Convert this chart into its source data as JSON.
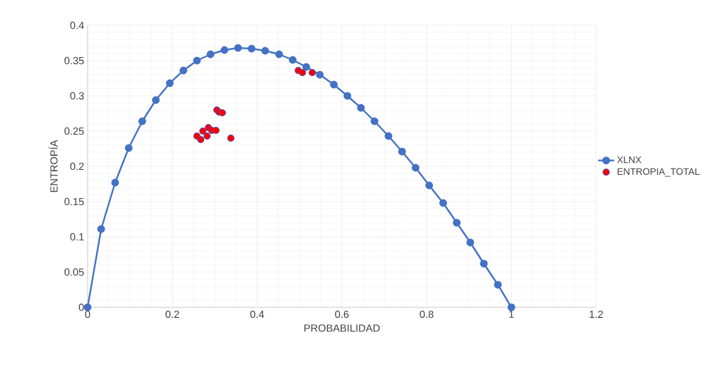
{
  "chart_data": {
    "type": "line",
    "xlabel": "PROBABILIDAD",
    "ylabel": "ENTROPÍA",
    "xlim": [
      0,
      1.2
    ],
    "xticks": [
      0,
      0.2,
      0.4,
      0.6,
      0.8,
      1,
      1.2
    ],
    "ylim": [
      0,
      0.4
    ],
    "yticks": [
      0,
      0.05,
      0.1,
      0.15,
      0.2,
      0.25,
      0.3,
      0.35,
      0.4
    ],
    "grid": true,
    "legend": "right",
    "marker": "circle",
    "series": [
      {
        "name": "XLNX",
        "color": "#4472c4",
        "x": [
          0,
          0.032,
          0.065,
          0.097,
          0.129,
          0.161,
          0.194,
          0.226,
          0.258,
          0.29,
          0.323,
          0.355,
          0.387,
          0.419,
          0.452,
          0.484,
          0.516,
          0.548,
          0.581,
          0.613,
          0.645,
          0.677,
          0.71,
          0.742,
          0.774,
          0.806,
          0.839,
          0.871,
          0.903,
          0.935,
          0.968,
          1
        ],
        "values": [
          0,
          0.111,
          0.177,
          0.226,
          0.264,
          0.294,
          0.318,
          0.336,
          0.35,
          0.359,
          0.365,
          0.368,
          0.367,
          0.364,
          0.359,
          0.351,
          0.341,
          0.33,
          0.316,
          0.3,
          0.283,
          0.264,
          0.243,
          0.221,
          0.198,
          0.173,
          0.148,
          0.12,
          0.092,
          0.062,
          0.032,
          0
        ]
      },
      {
        "name": "ENTROPIA_TOTAL",
        "type": "scatter",
        "color": "#ff0000",
        "x": [
          0.305,
          0.31,
          0.318,
          0.258,
          0.267,
          0.272,
          0.285,
          0.293,
          0.303,
          0.282,
          0.338,
          0.497,
          0.507,
          0.53
        ],
        "values": [
          0.28,
          0.277,
          0.276,
          0.243,
          0.238,
          0.25,
          0.255,
          0.251,
          0.251,
          0.243,
          0.24,
          0.336,
          0.333,
          0.333
        ]
      }
    ]
  }
}
